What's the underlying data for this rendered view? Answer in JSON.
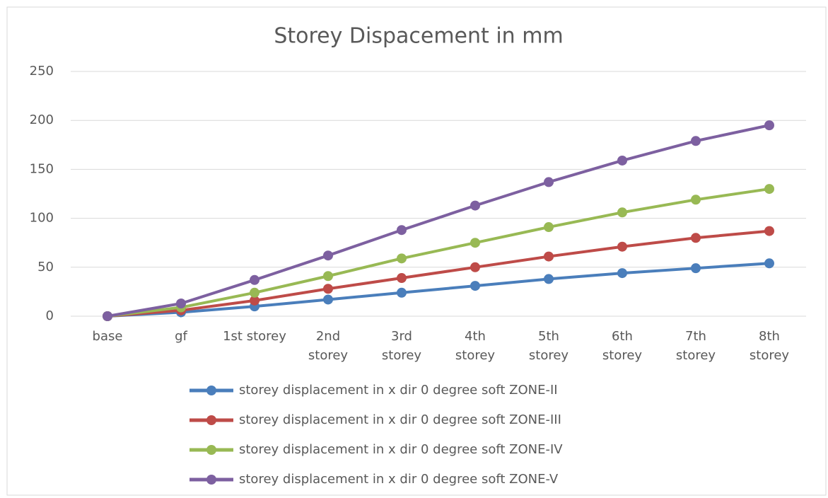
{
  "chart_data": {
    "type": "line",
    "title": "Storey Dispacement in mm",
    "categories": [
      "base",
      "gf",
      "1st storey",
      "2nd storey",
      "3rd storey",
      "4th storey",
      "5th storey",
      "6th storey",
      "7th storey",
      "8th storey"
    ],
    "series": [
      {
        "name": "storey displacement in x dir 0 degree soft ZONE-II",
        "color": "#4a7ebb",
        "values": [
          0,
          4,
          10,
          17,
          24,
          31,
          38,
          44,
          49,
          54
        ]
      },
      {
        "name": "storey displacement in x dir 0 degree soft ZONE-III",
        "color": "#be4b48",
        "values": [
          0,
          6,
          16,
          28,
          39,
          50,
          61,
          71,
          80,
          87
        ]
      },
      {
        "name": "storey displacement in x dir 0 degree soft ZONE-IV",
        "color": "#98b954",
        "values": [
          0,
          9,
          24,
          41,
          59,
          75,
          91,
          106,
          119,
          130
        ]
      },
      {
        "name": "storey displacement in x dir 0 degree soft ZONE-V",
        "color": "#7d60a0",
        "values": [
          0,
          13,
          37,
          62,
          88,
          113,
          137,
          159,
          179,
          195
        ]
      }
    ],
    "ylim": [
      0,
      250
    ],
    "yticks": [
      0,
      50,
      100,
      150,
      200,
      250
    ],
    "grid": true,
    "legend": "bottom"
  }
}
